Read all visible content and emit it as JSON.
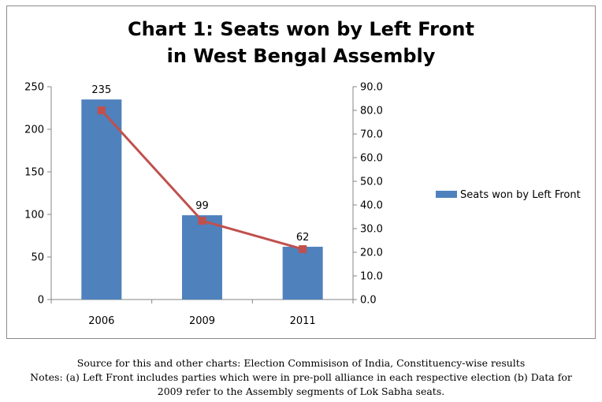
{
  "chart_data": {
    "type": "bar",
    "title_line1": "Chart 1: Seats won by Left Front",
    "title_line2": "in West Bengal Assembly",
    "categories": [
      "2006",
      "2009",
      "2011"
    ],
    "series": [
      {
        "name": "Seats won by Left Front",
        "values": [
          235,
          99,
          62
        ],
        "color": "#4f81bd",
        "axis": "left"
      },
      {
        "values": [
          80.0,
          33.3,
          21.3
        ],
        "color": "#c0504d",
        "axis": "right",
        "style": "line-with-square-markers"
      }
    ],
    "ylim": [
      0,
      250
    ],
    "y_ticks": [
      "0",
      "50",
      "100",
      "150",
      "200",
      "250"
    ],
    "y2lim": [
      0,
      90
    ],
    "y2_ticks": [
      "0.0",
      "10.0",
      "20.0",
      "30.0",
      "40.0",
      "50.0",
      "60.0",
      "70.0",
      "80.0",
      "90.0"
    ],
    "data_labels": [
      "235",
      "99",
      "62"
    ],
    "legend_position": "right",
    "grid": false
  },
  "footnote": {
    "line1": "Source for this and other charts: Election Commisison of India, Constituency-wise results",
    "line2": "Notes: (a) Left Front includes parties which were in pre-poll alliance in each respective election (b) Data for",
    "line3": "2009 refer to the Assembly segments of Lok Sabha seats."
  }
}
